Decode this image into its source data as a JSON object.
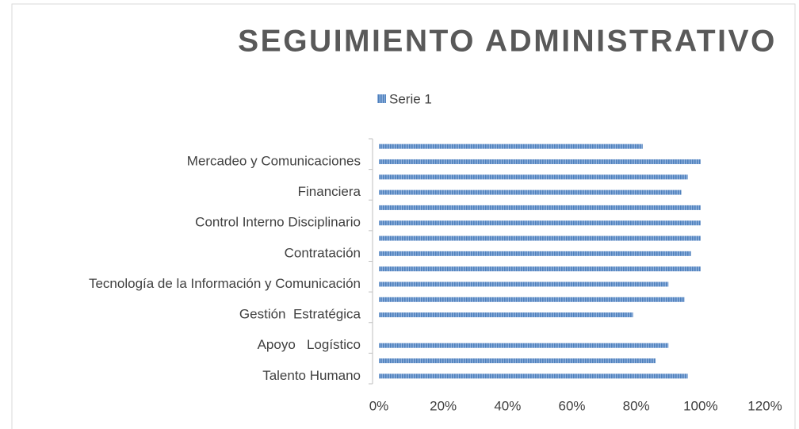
{
  "chart_data": {
    "type": "barh",
    "title": "SEGUIMIENTO ADMINISTRATIVO",
    "categories": [
      "Talento Humano",
      null,
      "Apoyo   Logístico",
      null,
      "Gestión  Estratégica",
      null,
      "Tecnología de la Información y Comunicación",
      null,
      "Contratación",
      null,
      "Control Interno Disciplinario",
      null,
      "Financiera",
      null,
      "Mercadeo y Comunicaciones",
      null
    ],
    "series": [
      {
        "name": "Serie 1",
        "color": "#4f81bd",
        "values": [
          96,
          86,
          90,
          0,
          79,
          95,
          90,
          100,
          97,
          100,
          100,
          100,
          94,
          96,
          100,
          82
        ]
      }
    ],
    "xlim": [
      0,
      120
    ],
    "xticks": [
      {
        "value": 0,
        "label": "0%"
      },
      {
        "value": 20,
        "label": "20%"
      },
      {
        "value": 40,
        "label": "40%"
      },
      {
        "value": 60,
        "label": "60%"
      },
      {
        "value": 80,
        "label": "80%"
      },
      {
        "value": 100,
        "label": "100%"
      },
      {
        "value": 120,
        "label": "120%"
      }
    ],
    "legend": "top",
    "grid": false
  }
}
